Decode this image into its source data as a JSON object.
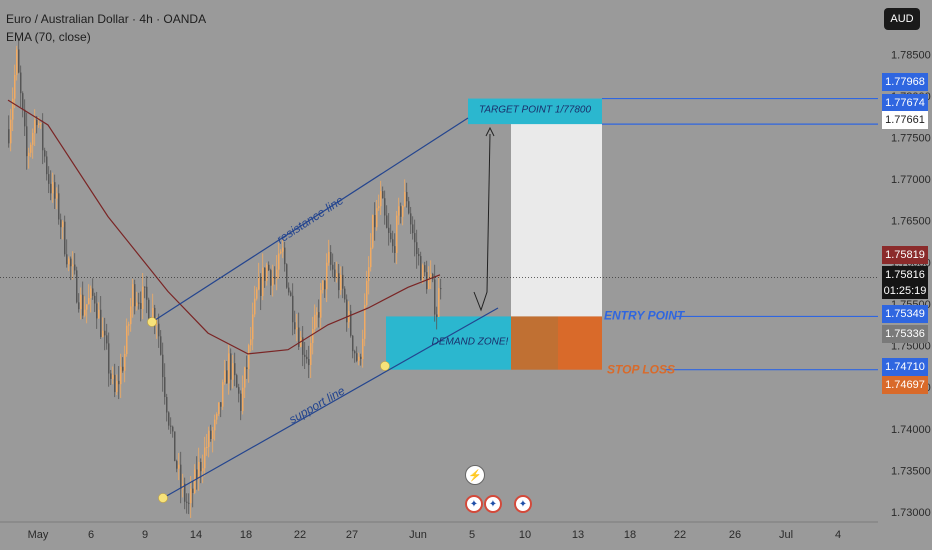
{
  "header": {
    "title": "Euro / Australian Dollar · 4h · OANDA",
    "indicator": "EMA (70, close)"
  },
  "currency_button": "AUD",
  "current_price": "1.75816",
  "countdown": "01:25:19",
  "colors": {
    "background": "#9a9a9a",
    "candle_up": "#f2ab62",
    "candle_down": "#555555",
    "ema": "#7a2525",
    "channel": "#24458f",
    "target_box": "#2bb7cf",
    "demand_box": "#2bb7cf",
    "stop_box": "#d96a2a",
    "profit_box": "#eaeaea",
    "line_blue": "#2f66e0"
  },
  "annotations": {
    "target": "TARGET POINT  1/77800",
    "demand": "DEMAND ZONE!",
    "entry": "ENTRY POINT",
    "stop": "STOP LOSS",
    "resistance": "resistance line",
    "support": "support line"
  },
  "price_tags": [
    {
      "label": "1.77968",
      "bg": "#2f66e0",
      "color": "#ffffff"
    },
    {
      "label": "1.77674",
      "bg": "#2f66e0",
      "color": "#ffffff"
    },
    {
      "label": "1.77661",
      "bg": "#ffffff",
      "color": "#1e1e1e"
    },
    {
      "label": "1.75819",
      "bg": "#8b2b2b",
      "color": "#ffffff"
    },
    {
      "label": "1.75349",
      "bg": "#2f66e0",
      "color": "#ffffff"
    },
    {
      "label": "1.75336",
      "bg": "#7a7a7a",
      "color": "#ffffff"
    },
    {
      "label": "1.74710",
      "bg": "#2f66e0",
      "color": "#ffffff"
    },
    {
      "label": "1.74697",
      "bg": "#d96a2a",
      "color": "#ffffff"
    }
  ],
  "event_icons": [
    "lightning-event-icon",
    "australia-flag-icon",
    "australia-flag-icon",
    "australia-flag-icon"
  ],
  "chart_data": {
    "type": "candlestick",
    "title": "Euro / Australian Dollar · 4h · OANDA",
    "y_axis": {
      "ticks": [
        1.785,
        1.78,
        1.775,
        1.77,
        1.765,
        1.76,
        1.755,
        1.75,
        1.745,
        1.74,
        1.735,
        1.73
      ],
      "tick_labels": [
        "1.78500",
        "1.78000",
        "1.77500",
        "1.77000",
        "1.76500",
        "1.76000",
        "1.75500",
        "1.75000",
        "1.74500",
        "1.74000",
        "1.73500",
        "1.73000"
      ],
      "range": [
        1.7288,
        1.7896
      ]
    },
    "x_axis": {
      "tick_labels": [
        "May",
        "6",
        "9",
        "14",
        "18",
        "22",
        "27",
        "Jun",
        "5",
        "10",
        "13",
        "18",
        "22",
        "26",
        "Jul",
        "4"
      ],
      "note": "dates May through early July 2025 (4h bars)"
    },
    "candle_count": 240,
    "key_path_prices": [
      {
        "bar": 0,
        "price": 1.776
      },
      {
        "bar": 4,
        "price": 1.7845
      },
      {
        "bar": 9,
        "price": 1.7725
      },
      {
        "bar": 14,
        "price": 1.778
      },
      {
        "bar": 20,
        "price": 1.77
      },
      {
        "bar": 25,
        "price": 1.766
      },
      {
        "bar": 30,
        "price": 1.76
      },
      {
        "bar": 37,
        "price": 1.7545
      },
      {
        "bar": 43,
        "price": 1.756
      },
      {
        "bar": 50,
        "price": 1.7475
      },
      {
        "bar": 53,
        "price": 1.744
      },
      {
        "bar": 58,
        "price": 1.749
      },
      {
        "bar": 62,
        "price": 1.7565
      },
      {
        "bar": 68,
        "price": 1.7555
      },
      {
        "bar": 74,
        "price": 1.7535
      },
      {
        "bar": 78,
        "price": 1.745
      },
      {
        "bar": 82,
        "price": 1.738
      },
      {
        "bar": 86,
        "price": 1.733
      },
      {
        "bar": 90,
        "price": 1.7305
      },
      {
        "bar": 94,
        "price": 1.7345
      },
      {
        "bar": 99,
        "price": 1.738
      },
      {
        "bar": 104,
        "price": 1.7405
      },
      {
        "bar": 110,
        "price": 1.748
      },
      {
        "bar": 116,
        "price": 1.743
      },
      {
        "bar": 120,
        "price": 1.749
      },
      {
        "bar": 124,
        "price": 1.756
      },
      {
        "bar": 129,
        "price": 1.7595
      },
      {
        "bar": 133,
        "price": 1.758
      },
      {
        "bar": 137,
        "price": 1.761
      },
      {
        "bar": 141,
        "price": 1.7555
      },
      {
        "bar": 146,
        "price": 1.7505
      },
      {
        "bar": 150,
        "price": 1.7485
      },
      {
        "bar": 155,
        "price": 1.7545
      },
      {
        "bar": 160,
        "price": 1.76
      },
      {
        "bar": 164,
        "price": 1.758
      },
      {
        "bar": 167,
        "price": 1.7565
      },
      {
        "bar": 172,
        "price": 1.7505
      },
      {
        "bar": 175,
        "price": 1.7475
      },
      {
        "bar": 178,
        "price": 1.754
      },
      {
        "bar": 182,
        "price": 1.764
      },
      {
        "bar": 186,
        "price": 1.7675
      },
      {
        "bar": 189,
        "price": 1.7635
      },
      {
        "bar": 192,
        "price": 1.7615
      },
      {
        "bar": 196,
        "price": 1.7665
      },
      {
        "bar": 199,
        "price": 1.768
      },
      {
        "bar": 203,
        "price": 1.762
      },
      {
        "bar": 207,
        "price": 1.7585
      },
      {
        "bar": 211,
        "price": 1.7575
      },
      {
        "bar": 214,
        "price": 1.7542
      },
      {
        "bar": 216,
        "price": 1.7582
      }
    ],
    "ema_70": [
      {
        "bar": 0,
        "price": 1.7795
      },
      {
        "bar": 20,
        "price": 1.7765
      },
      {
        "bar": 50,
        "price": 1.7655
      },
      {
        "bar": 80,
        "price": 1.7565
      },
      {
        "bar": 100,
        "price": 1.7515
      },
      {
        "bar": 120,
        "price": 1.749
      },
      {
        "bar": 140,
        "price": 1.7495
      },
      {
        "bar": 160,
        "price": 1.7525
      },
      {
        "bar": 180,
        "price": 1.7545
      },
      {
        "bar": 200,
        "price": 1.757
      },
      {
        "bar": 216,
        "price": 1.7585
      }
    ],
    "levels": {
      "target": 1.778,
      "entry": 1.7535,
      "stop": 1.7471,
      "current": 1.75816
    }
  }
}
